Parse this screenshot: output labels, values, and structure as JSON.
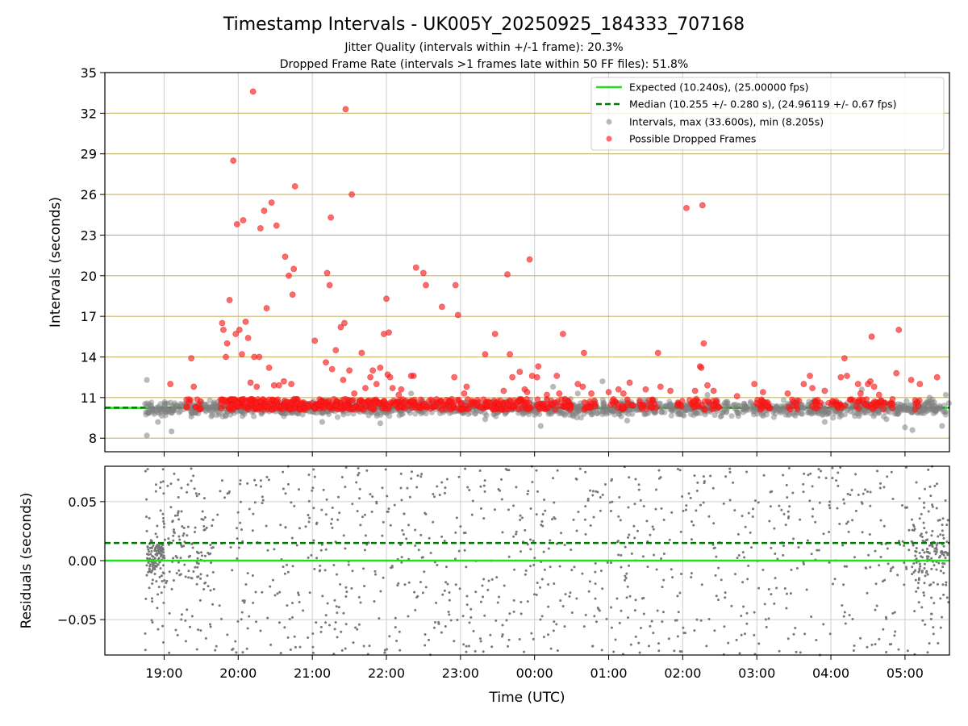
{
  "chart_data": [
    {
      "type": "scatter",
      "panel": "intervals",
      "title": "Timestamp Intervals - UK005Y_20250925_184333_707168",
      "subtitles": [
        "Jitter Quality (intervals within +/-1 frame): 20.3%",
        "Dropped Frame Rate (intervals >1 frames late within 50 FF files): 51.8%"
      ],
      "ylabel": "Intervals (seconds)",
      "ylim": [
        7,
        35
      ],
      "yticks": [
        8,
        11,
        14,
        17,
        20,
        23,
        26,
        29,
        32,
        35
      ],
      "ygrid_color": "#c8b46a",
      "xgrid": true,
      "legend_position": "upper-right",
      "series": [
        {
          "name": "Expected (10.240s), (25.00000 fps)",
          "kind": "hline",
          "y": 10.24,
          "color": "#1ee01e"
        },
        {
          "name": "Median (10.255 +/- 0.280 s), (24.96119 +/- 0.67 fps)",
          "kind": "hline-dashed",
          "y": 10.255,
          "color": "#007a00"
        },
        {
          "name": "Intervals, max (33.600s), min (8.205s)",
          "kind": "scatter-band",
          "color": "#7f7f7f",
          "max": 33.6,
          "min": 8.205,
          "band": [
            9.4,
            11.0
          ],
          "outliers": [
            [
              "18:46",
              12.3
            ],
            [
              "18:46",
              8.2
            ],
            [
              "18:55",
              9.2
            ],
            [
              "19:06",
              8.5
            ],
            [
              "19:22",
              9.6
            ],
            [
              "21:08",
              9.2
            ],
            [
              "21:55",
              9.1
            ],
            [
              "22:20",
              11.3
            ],
            [
              "23:20",
              9.4
            ],
            [
              "00:05",
              8.9
            ],
            [
              "00:15",
              11.8
            ],
            [
              "00:35",
              11.3
            ],
            [
              "00:55",
              12.2
            ],
            [
              "01:15",
              9.3
            ],
            [
              "02:20",
              11.2
            ],
            [
              "03:55",
              9.2
            ],
            [
              "04:25",
              11.6
            ],
            [
              "04:45",
              9.4
            ],
            [
              "05:00",
              8.8
            ],
            [
              "05:06",
              8.6
            ],
            [
              "05:20",
              11.0
            ],
            [
              "05:30",
              8.9
            ],
            [
              "05:33",
              11.2
            ]
          ]
        },
        {
          "name": "Possible Dropped Frames",
          "kind": "scatter",
          "color": "#ff1a1a",
          "base_band": [
            10.1,
            10.9
          ],
          "points": [
            [
              "19:05",
              12.0
            ],
            [
              "19:22",
              13.9
            ],
            [
              "19:24",
              11.8
            ],
            [
              "19:47",
              16.5
            ],
            [
              "19:48",
              16.0
            ],
            [
              "19:50",
              14.0
            ],
            [
              "19:51",
              15.0
            ],
            [
              "19:53",
              18.2
            ],
            [
              "19:56",
              28.5
            ],
            [
              "19:58",
              15.7
            ],
            [
              "19:59",
              23.8
            ],
            [
              "20:01",
              16.0
            ],
            [
              "20:03",
              14.2
            ],
            [
              "20:04",
              24.1
            ],
            [
              "20:06",
              16.6
            ],
            [
              "20:08",
              15.4
            ],
            [
              "20:10",
              12.1
            ],
            [
              "20:12",
              33.6
            ],
            [
              "20:13",
              14.0
            ],
            [
              "20:15",
              11.8
            ],
            [
              "20:17",
              14.0
            ],
            [
              "20:18",
              23.5
            ],
            [
              "20:21",
              24.8
            ],
            [
              "20:23",
              17.6
            ],
            [
              "20:25",
              13.2
            ],
            [
              "20:27",
              25.4
            ],
            [
              "20:29",
              11.9
            ],
            [
              "20:31",
              23.7
            ],
            [
              "20:33",
              11.9
            ],
            [
              "20:37",
              12.2
            ],
            [
              "20:38",
              21.4
            ],
            [
              "20:41",
              20.0
            ],
            [
              "20:43",
              12.0
            ],
            [
              "20:44",
              18.6
            ],
            [
              "20:45",
              20.5
            ],
            [
              "20:46",
              26.6
            ],
            [
              "21:02",
              15.2
            ],
            [
              "21:11",
              13.6
            ],
            [
              "21:12",
              20.2
            ],
            [
              "21:14",
              19.3
            ],
            [
              "21:15",
              24.3
            ],
            [
              "21:16",
              13.1
            ],
            [
              "21:19",
              14.5
            ],
            [
              "21:23",
              16.2
            ],
            [
              "21:25",
              12.3
            ],
            [
              "21:26",
              16.5
            ],
            [
              "21:27",
              32.3
            ],
            [
              "21:30",
              13.0
            ],
            [
              "21:32",
              26.0
            ],
            [
              "21:34",
              11.3
            ],
            [
              "21:40",
              14.3
            ],
            [
              "21:43",
              11.7
            ],
            [
              "21:47",
              12.5
            ],
            [
              "21:49",
              13.0
            ],
            [
              "21:52",
              12.0
            ],
            [
              "21:55",
              13.2
            ],
            [
              "21:58",
              15.7
            ],
            [
              "22:00",
              18.3
            ],
            [
              "22:01",
              12.7
            ],
            [
              "22:02",
              15.8
            ],
            [
              "22:03",
              12.5
            ],
            [
              "22:05",
              11.7
            ],
            [
              "22:10",
              11.2
            ],
            [
              "22:12",
              11.6
            ],
            [
              "22:20",
              12.6
            ],
            [
              "22:22",
              12.6
            ],
            [
              "22:24",
              20.6
            ],
            [
              "22:30",
              20.2
            ],
            [
              "22:32",
              19.3
            ],
            [
              "22:45",
              17.7
            ],
            [
              "22:55",
              12.5
            ],
            [
              "22:56",
              19.3
            ],
            [
              "22:58",
              17.1
            ],
            [
              "23:03",
              11.3
            ],
            [
              "23:05",
              11.8
            ],
            [
              "23:20",
              14.2
            ],
            [
              "23:28",
              15.7
            ],
            [
              "23:35",
              11.5
            ],
            [
              "23:38",
              20.1
            ],
            [
              "23:40",
              14.2
            ],
            [
              "23:42",
              12.5
            ],
            [
              "23:48",
              12.9
            ],
            [
              "23:52",
              11.6
            ],
            [
              "23:54",
              11.4
            ],
            [
              "23:56",
              21.2
            ],
            [
              "23:58",
              12.6
            ],
            [
              "00:02",
              12.5
            ],
            [
              "00:03",
              13.3
            ],
            [
              "00:10",
              11.2
            ],
            [
              "00:18",
              12.6
            ],
            [
              "00:20",
              11.3
            ],
            [
              "00:23",
              15.7
            ],
            [
              "00:35",
              12.0
            ],
            [
              "00:39",
              11.8
            ],
            [
              "00:40",
              14.3
            ],
            [
              "00:46",
              11.3
            ],
            [
              "01:00",
              11.4
            ],
            [
              "01:08",
              11.6
            ],
            [
              "01:12",
              11.3
            ],
            [
              "01:17",
              12.1
            ],
            [
              "01:30",
              11.6
            ],
            [
              "01:40",
              14.3
            ],
            [
              "01:42",
              11.8
            ],
            [
              "01:50",
              11.5
            ],
            [
              "02:03",
              25.0
            ],
            [
              "02:10",
              11.5
            ],
            [
              "02:14",
              13.3
            ],
            [
              "02:15",
              13.2
            ],
            [
              "02:16",
              25.2
            ],
            [
              "02:17",
              15.0
            ],
            [
              "02:20",
              11.9
            ],
            [
              "02:25",
              11.5
            ],
            [
              "02:44",
              11.1
            ],
            [
              "02:58",
              12.0
            ],
            [
              "03:05",
              11.4
            ],
            [
              "03:25",
              11.3
            ],
            [
              "03:38",
              12.0
            ],
            [
              "03:43",
              12.6
            ],
            [
              "03:45",
              11.7
            ],
            [
              "03:55",
              11.5
            ],
            [
              "04:08",
              12.5
            ],
            [
              "04:11",
              13.9
            ],
            [
              "04:13",
              12.6
            ],
            [
              "04:22",
              12.0
            ],
            [
              "04:24",
              11.3
            ],
            [
              "04:30",
              12.0
            ],
            [
              "04:32",
              12.2
            ],
            [
              "04:33",
              15.5
            ],
            [
              "04:35",
              11.8
            ],
            [
              "04:39",
              11.2
            ],
            [
              "04:53",
              12.8
            ],
            [
              "04:55",
              16.0
            ],
            [
              "05:05",
              12.3
            ],
            [
              "05:12",
              12.0
            ],
            [
              "05:26",
              12.5
            ]
          ]
        }
      ]
    },
    {
      "type": "scatter",
      "panel": "residuals",
      "xlabel": "Time (UTC)",
      "ylabel": "Residuals (seconds)",
      "ylim": [
        -0.08,
        0.08
      ],
      "yticks": [
        -0.05,
        0.0,
        0.05
      ],
      "ytick_labels": [
        "−0.05",
        "0.00",
        "0.05"
      ],
      "xlim": [
        "18:12",
        "05:36"
      ],
      "xticks": [
        "19:00",
        "20:00",
        "21:00",
        "22:00",
        "23:00",
        "00:00",
        "01:00",
        "02:00",
        "03:00",
        "04:00",
        "05:00"
      ],
      "grid": true,
      "series": [
        {
          "kind": "hline",
          "y": 0.0,
          "color": "#1ee01e"
        },
        {
          "kind": "hline-dashed",
          "y": 0.015,
          "color": "#007a00"
        },
        {
          "kind": "scatter",
          "color": "#7f7f7f",
          "range": [
            -0.08,
            0.08
          ],
          "dense_near_zero_at": [
            "18:50",
            "19:20",
            "05:10",
            "05:35"
          ]
        }
      ]
    }
  ]
}
